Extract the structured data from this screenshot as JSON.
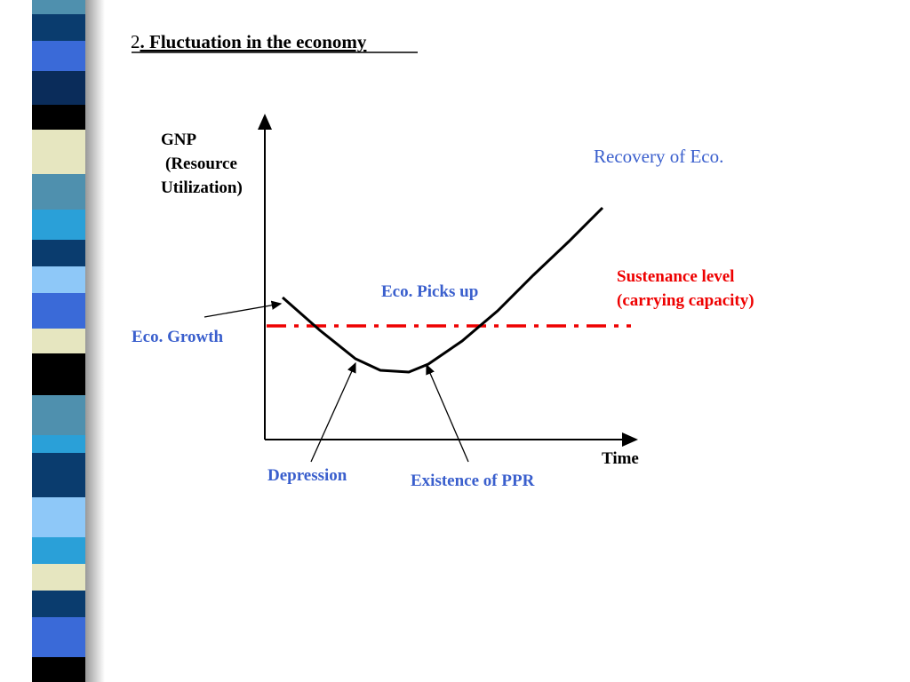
{
  "title": {
    "number": "2",
    "text": ". Fluctuation in the economy"
  },
  "y_axis_label": [
    "GNP",
    "(Resource",
    "Utilization)"
  ],
  "x_axis_label": "Time",
  "annotations": {
    "recovery": "Recovery of Eco.",
    "sustenance": [
      "Sustenance level",
      "(carrying capacity)"
    ],
    "picks_up": "Eco. Picks up",
    "growth": "Eco. Growth",
    "depression": "Depression",
    "ppr": "Existence of PPR"
  }
}
